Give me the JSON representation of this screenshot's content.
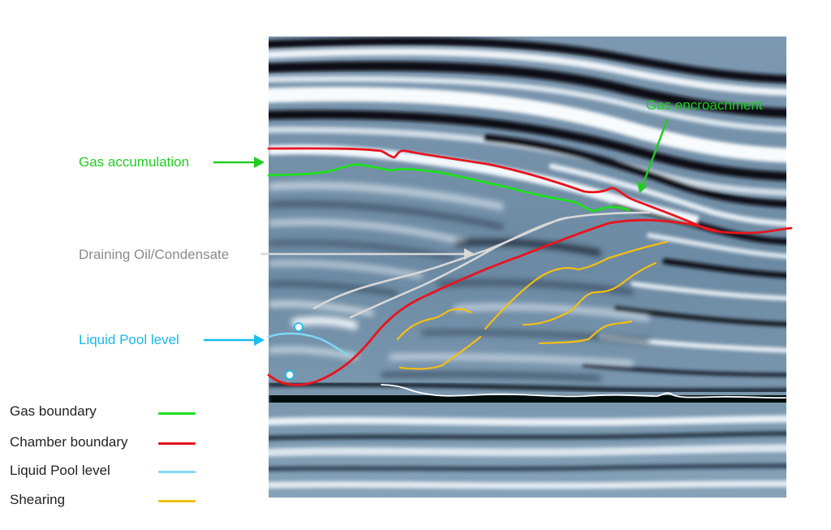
{
  "annotations": {
    "gas_accumulation": "Gas accumulation",
    "gas_encroachment": "Gas encroachment",
    "draining_oil": "Draining Oil/Condensate",
    "liquid_pool": "Liquid Pool level"
  },
  "legend": {
    "items": [
      {
        "label": "Gas boundary",
        "color": "#1ee01e"
      },
      {
        "label": "Chamber boundary",
        "color": "#e8141e"
      },
      {
        "label": "Liquid Pool level",
        "color": "#7fd8f4"
      },
      {
        "label": "Shearing",
        "color": "#f4be14"
      }
    ]
  },
  "colors": {
    "gas_label": "#22cc22",
    "draining_label": "#8a8a8a",
    "liquid_label": "#18b8e8",
    "draining_line": "#d8d8d8",
    "horizon_line": "#ffffff",
    "seismic_dark": "#0a0f18",
    "seismic_mid": "#6f8ea8",
    "seismic_light": "#f4f7fa"
  }
}
